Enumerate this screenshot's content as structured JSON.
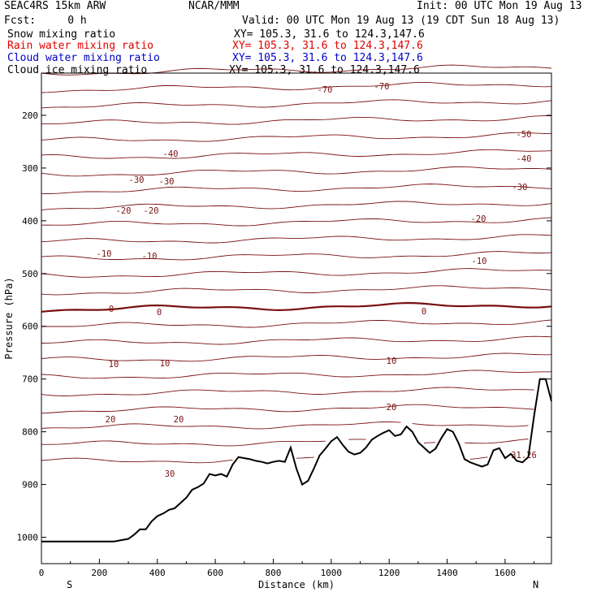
{
  "header": {
    "model": "SEAC4RS 15km ARW",
    "org": "NCAR/MMM",
    "init": "Init: 00 UTC Mon 19 Aug 13",
    "fcst": "Fcst:     0 h",
    "valid": "Valid: 00 UTC Mon 19 Aug 13 (19 CDT Sun 18 Aug 13)",
    "fields": [
      {
        "name": "Snow mixing ratio",
        "xy": "XY= 105.3, 31.6 to 124.3,147.6",
        "color": "#000000"
      },
      {
        "name": "Rain water mixing ratio",
        "xy": "XY= 105.3, 31.6 to 124.3,147.6",
        "color": "#e00000"
      },
      {
        "name": "Cloud water mixing ratio",
        "xy": "XY= 105.3, 31.6 to 124.3,147.6",
        "color": "#0000c8"
      },
      {
        "name": "Cloud ice mixing ratio",
        "xy": "XY= 105.3, 31.6 to 124.3,147.6",
        "color": "#000000"
      }
    ]
  },
  "chart_data": {
    "type": "line",
    "xlabel": "Distance (km)",
    "ylabel": "Pressure (hPa)",
    "xlim": [
      0,
      1760
    ],
    "ylim": [
      1050,
      120
    ],
    "xticks": [
      0,
      200,
      400,
      600,
      800,
      1000,
      1200,
      1400,
      1600
    ],
    "yticks": [
      200,
      300,
      400,
      500,
      600,
      700,
      800,
      900,
      1000
    ],
    "end_labels": {
      "left": "S",
      "right": "N"
    },
    "contour_color": "#7a1010",
    "contour_labels": [
      "-70",
      "-70",
      "-50",
      "-40",
      "-40",
      "-30",
      "-30",
      "-30",
      "-20",
      "-20",
      "-20",
      "-10",
      "-10",
      "-10",
      "0",
      "0",
      "0",
      "10",
      "10",
      "10",
      "20",
      "20",
      "20",
      "30",
      "31.26"
    ],
    "terrain": {
      "x": [
        0,
        50,
        100,
        150,
        200,
        250,
        300,
        320,
        340,
        360,
        380,
        400,
        420,
        440,
        460,
        480,
        500,
        520,
        540,
        560,
        580,
        600,
        620,
        640,
        660,
        680,
        700,
        720,
        740,
        760,
        780,
        800,
        820,
        840,
        860,
        880,
        900,
        920,
        940,
        960,
        980,
        1000,
        1020,
        1040,
        1060,
        1080,
        1100,
        1120,
        1140,
        1160,
        1180,
        1200,
        1220,
        1240,
        1260,
        1280,
        1300,
        1320,
        1340,
        1360,
        1380,
        1400,
        1420,
        1440,
        1460,
        1480,
        1500,
        1520,
        1540,
        1560,
        1580,
        1600,
        1620,
        1640,
        1660,
        1680,
        1700,
        1720,
        1740,
        1760
      ],
      "p": [
        1008,
        1008,
        1008,
        1008,
        1008,
        1008,
        1003,
        995,
        985,
        985,
        970,
        960,
        955,
        948,
        945,
        935,
        925,
        910,
        905,
        898,
        880,
        883,
        880,
        885,
        862,
        848,
        850,
        852,
        855,
        857,
        860,
        857,
        855,
        857,
        830,
        870,
        900,
        893,
        870,
        845,
        832,
        818,
        810,
        825,
        838,
        843,
        840,
        830,
        815,
        808,
        802,
        797,
        808,
        805,
        790,
        800,
        820,
        830,
        840,
        832,
        812,
        795,
        800,
        822,
        852,
        858,
        862,
        866,
        862,
        835,
        831,
        850,
        842,
        855,
        858,
        848,
        770,
        700,
        700,
        742
      ]
    },
    "contours": [
      {
        "level": -70,
        "p": [
          140,
          136,
          130,
          126,
          124
        ]
      },
      {
        "level": -60,
        "p": [
          156,
          153,
          148,
          143,
          142
        ]
      },
      {
        "level": -50,
        "p": [
          180,
          177,
          172,
          168,
          168
        ]
      },
      {
        "level": -40,
        "p": [
          205,
          202,
          198,
          195,
          195
        ]
      },
      {
        "level": -30,
        "p": [
          236,
          235,
          233,
          231,
          231
        ]
      },
      {
        "level": -20,
        "p": [
          268,
          267,
          264,
          263,
          262
        ]
      },
      {
        "level": -10,
        "p": [
          309,
          309,
          310,
          310,
          310
        ]
      },
      {
        "level": 0,
        "p": [
          567,
          565,
          566,
          566,
          568
        ]
      },
      {
        "level": 10,
        "p": [
          450,
          448,
          450,
          452,
          452
        ]
      },
      {
        "level": 20,
        "p": [
          530,
          530,
          532,
          538,
          545
        ]
      },
      {
        "level": 30,
        "p": [
          630,
          628,
          636,
          650,
          670
        ]
      }
    ]
  }
}
